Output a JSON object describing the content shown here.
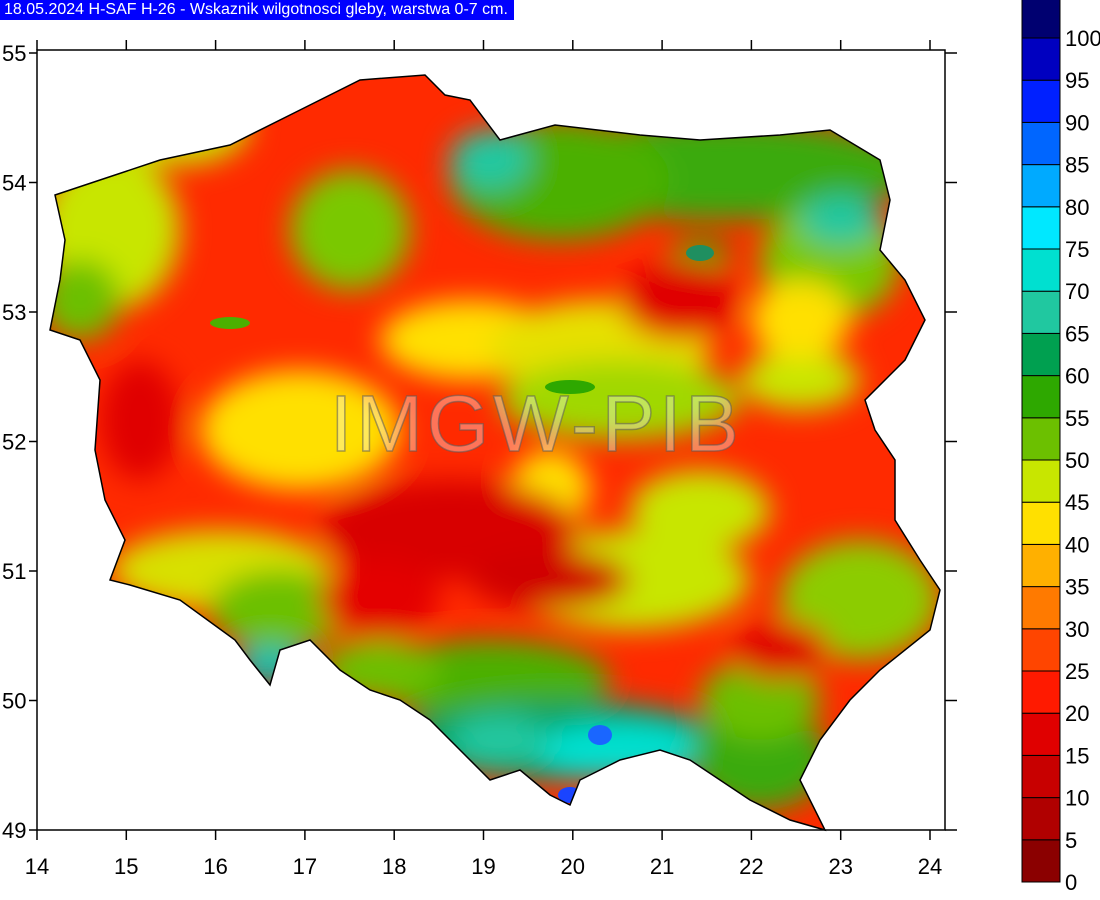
{
  "title": "18.05.2024 H-SAF H-26 - Wskaznik wilgotnosci gleby, warstwa 0-7 cm.",
  "watermark": "IMGW-PIB",
  "map": {
    "region": "Poland",
    "lon_range": [
      14,
      24
    ],
    "lat_range": [
      49,
      55
    ],
    "lon_ticks": [
      "14",
      "15",
      "16",
      "17",
      "18",
      "19",
      "20",
      "21",
      "22",
      "23",
      "24"
    ],
    "lat_ticks": [
      "49",
      "50",
      "51",
      "52",
      "53",
      "54",
      "55"
    ]
  },
  "legend": {
    "stops": [
      {
        "label": "0",
        "color": "#8b0000"
      },
      {
        "label": "5",
        "color": "#b00000"
      },
      {
        "label": "10",
        "color": "#c80000"
      },
      {
        "label": "15",
        "color": "#e00000"
      },
      {
        "label": "20",
        "color": "#ff1a00"
      },
      {
        "label": "25",
        "color": "#ff4500"
      },
      {
        "label": "30",
        "color": "#ff7a00"
      },
      {
        "label": "35",
        "color": "#ffb000"
      },
      {
        "label": "40",
        "color": "#ffe000"
      },
      {
        "label": "45",
        "color": "#c8e600"
      },
      {
        "label": "50",
        "color": "#6cc000"
      },
      {
        "label": "55",
        "color": "#2ea800"
      },
      {
        "label": "60",
        "color": "#00a050"
      },
      {
        "label": "65",
        "color": "#20c8a0"
      },
      {
        "label": "70",
        "color": "#00e0d0"
      },
      {
        "label": "75",
        "color": "#00e8ff"
      },
      {
        "label": "80",
        "color": "#00aaff"
      },
      {
        "label": "85",
        "color": "#0066ff"
      },
      {
        "label": "90",
        "color": "#0020ff"
      },
      {
        "label": "95",
        "color": "#0000c0"
      },
      {
        "label": "100",
        "color": "#000070"
      }
    ],
    "top_color": "#000000"
  }
}
